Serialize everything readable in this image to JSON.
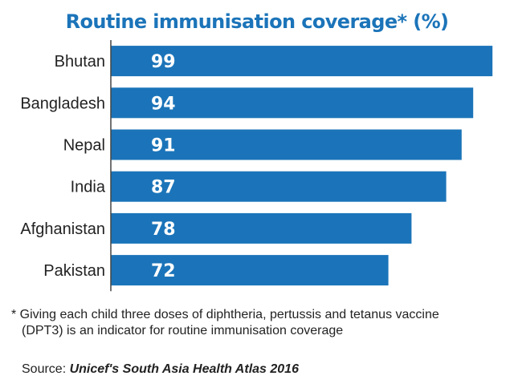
{
  "colors": {
    "bar": "#1b74b9",
    "title": "#1b74b9",
    "value_text": "#ffffff",
    "label_text": "#222222",
    "axis": "#444444"
  },
  "chart_data": {
    "type": "bar",
    "orientation": "horizontal",
    "title": "Routine immunisation coverage* (%)",
    "xlabel": "",
    "ylabel": "",
    "xlim": [
      0,
      100
    ],
    "grid": false,
    "categories": [
      "Bhutan",
      "Bangladesh",
      "Nepal",
      "India",
      "Afghanistan",
      "Pakistan"
    ],
    "values": [
      99,
      94,
      91,
      87,
      78,
      72
    ],
    "data_labels": [
      "99",
      "94",
      "91",
      "87",
      "78",
      "72"
    ]
  },
  "footnote": {
    "line1": "* Giving each child three doses of diphtheria, pertussis and tetanus vaccine",
    "line2": "(DPT3) is an indicator for routine immunisation coverage"
  },
  "source": {
    "prefix": "Source: ",
    "name": "Unicef's South Asia Health Atlas 2016"
  }
}
